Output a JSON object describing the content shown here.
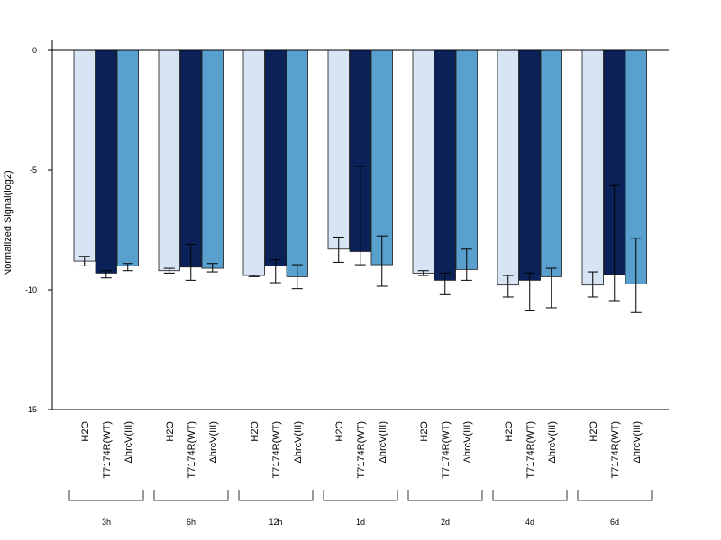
{
  "chart_data": {
    "type": "bar",
    "title": "",
    "ylabel": "Normalized Signal(log2)",
    "xlabel": "",
    "ylim": [
      -15,
      0.5
    ],
    "yticks": [
      0,
      -5,
      -10,
      -15
    ],
    "ytick_labels": [
      "0",
      "-5",
      "-10",
      "-15"
    ],
    "grid": false,
    "legend": "none",
    "zero_line": true,
    "bar_labels": [
      "H2O",
      "T7174R(WT)",
      "ΔhrcV(III)"
    ],
    "groups": [
      "3h",
      "6h",
      "12h",
      "1d",
      "2d",
      "4d",
      "6d"
    ],
    "colors": [
      "#d6e4f3",
      "#0b2259",
      "#5aa0ce"
    ],
    "series": [
      {
        "values": [
          -8.8,
          -9.2,
          -9.4,
          -8.3,
          -9.3,
          -9.8,
          -9.8
        ],
        "err_upper": [
          -8.6,
          -9.1,
          -9.4,
          -7.8,
          -9.2,
          -9.4,
          -9.25
        ],
        "err_lower": [
          -9.0,
          -9.3,
          -9.45,
          -8.85,
          -9.4,
          -10.3,
          -10.3
        ]
      },
      {
        "values": [
          -9.3,
          -9.05,
          -9.0,
          -8.4,
          -9.6,
          -9.6,
          -9.35
        ],
        "err_upper": [
          -9.2,
          -8.1,
          -8.75,
          -4.85,
          -9.3,
          -9.3,
          -5.65
        ],
        "err_lower": [
          -9.5,
          -9.6,
          -9.7,
          -8.95,
          -10.2,
          -10.85,
          -10.45
        ]
      },
      {
        "values": [
          -9.0,
          -9.1,
          -9.45,
          -8.95,
          -9.15,
          -9.45,
          -9.75
        ],
        "err_upper": [
          -8.9,
          -8.9,
          -8.95,
          -7.75,
          -8.3,
          -9.1,
          -7.85
        ],
        "err_lower": [
          -9.2,
          -9.25,
          -9.95,
          -9.85,
          -9.6,
          -10.75,
          -10.95
        ]
      }
    ]
  }
}
